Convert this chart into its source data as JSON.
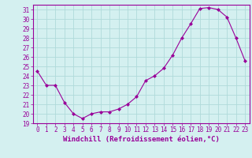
{
  "x": [
    0,
    1,
    2,
    3,
    4,
    5,
    6,
    7,
    8,
    9,
    10,
    11,
    12,
    13,
    14,
    15,
    16,
    17,
    18,
    19,
    20,
    21,
    22,
    23
  ],
  "y": [
    24.5,
    23.0,
    23.0,
    21.2,
    20.0,
    19.5,
    20.0,
    20.2,
    20.2,
    20.5,
    21.0,
    21.8,
    23.5,
    24.0,
    24.8,
    26.2,
    28.0,
    29.5,
    31.1,
    31.2,
    31.0,
    30.2,
    28.0,
    25.6
  ],
  "line_color": "#990099",
  "marker": "D",
  "marker_size": 2,
  "bg_color": "#d4f0f0",
  "grid_color": "#b0dada",
  "xlabel": "Windchill (Refroidissement éolien,°C)",
  "xlim": [
    -0.5,
    23.5
  ],
  "ylim": [
    19,
    31.5
  ],
  "yticks": [
    19,
    20,
    21,
    22,
    23,
    24,
    25,
    26,
    27,
    28,
    29,
    30,
    31
  ],
  "xticks": [
    0,
    1,
    2,
    3,
    4,
    5,
    6,
    7,
    8,
    9,
    10,
    11,
    12,
    13,
    14,
    15,
    16,
    17,
    18,
    19,
    20,
    21,
    22,
    23
  ],
  "tick_color": "#990099",
  "label_color": "#990099",
  "tick_fontsize": 5.5,
  "xlabel_fontsize": 6.5,
  "spine_color": "#990099"
}
